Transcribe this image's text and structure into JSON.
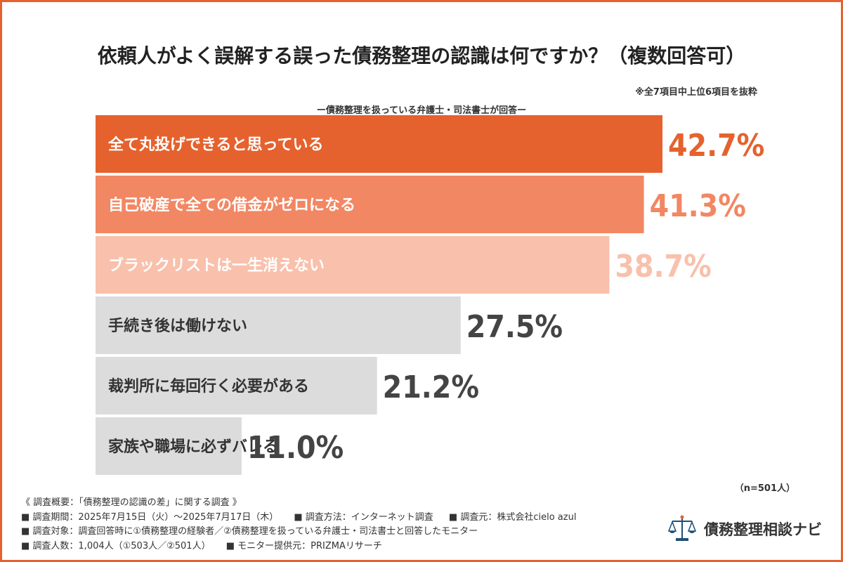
{
  "title": "依頼人がよく誤解する誤った債務整理の認識は何ですか？（複数回答可）",
  "note": "※全7項目中上位6項目を抜粋",
  "respondent": "ー債務整理を扱っている弁護士・司法書士が回答ー",
  "sample_size": "（n=501人）",
  "footer": {
    "heading": "《 調査概要：「債務整理の認識の差」に関する調査 》",
    "period": "■ 調査期間：2025年7月15日（火）〜2025年7月17日（木）",
    "method": "■ 調査方法：インターネット調査",
    "source": "■ 調査元：株式会社cielo azul",
    "target": "■ 調査対象：調査回答時に①債務整理の経験者／②債務整理を扱っている弁護士・司法書士と回答したモニター",
    "count": "■ 調査人数：1,004人（①503人／②501人）",
    "provider": "■ モニター提供元：PRIZMAリサーチ"
  },
  "brand": {
    "name": "債務整理相談ナビ",
    "icon": "scales-icon"
  },
  "colors": {
    "frame": "#e5622e",
    "bars": [
      "#e5622e",
      "#f28763",
      "#f9c0ab",
      "#dcdcdc",
      "#dcdcdc",
      "#dcdcdc"
    ],
    "value_text": [
      "#e5622e",
      "#f28763",
      "#f9c0ab",
      "#444444",
      "#444444",
      "#444444"
    ],
    "label_text": [
      "#ffffff",
      "#ffffff",
      "#ffffff",
      "#333333",
      "#333333",
      "#333333"
    ]
  },
  "chart_data": {
    "type": "bar",
    "orientation": "horizontal",
    "categories": [
      "全て丸投げできると思っている",
      "自己破産で全ての借金がゼロになる",
      "ブラックリストは一生消えない",
      "手続き後は働けない",
      "裁判所に毎回行く必要がある",
      "家族や職場に必ずバレる"
    ],
    "values": [
      42.7,
      41.3,
      38.7,
      27.5,
      21.2,
      11.0
    ],
    "value_labels": [
      "42.7%",
      "41.3%",
      "38.7%",
      "27.5%",
      "21.2%",
      "11.0%"
    ],
    "unit": "%",
    "grid": false
  }
}
